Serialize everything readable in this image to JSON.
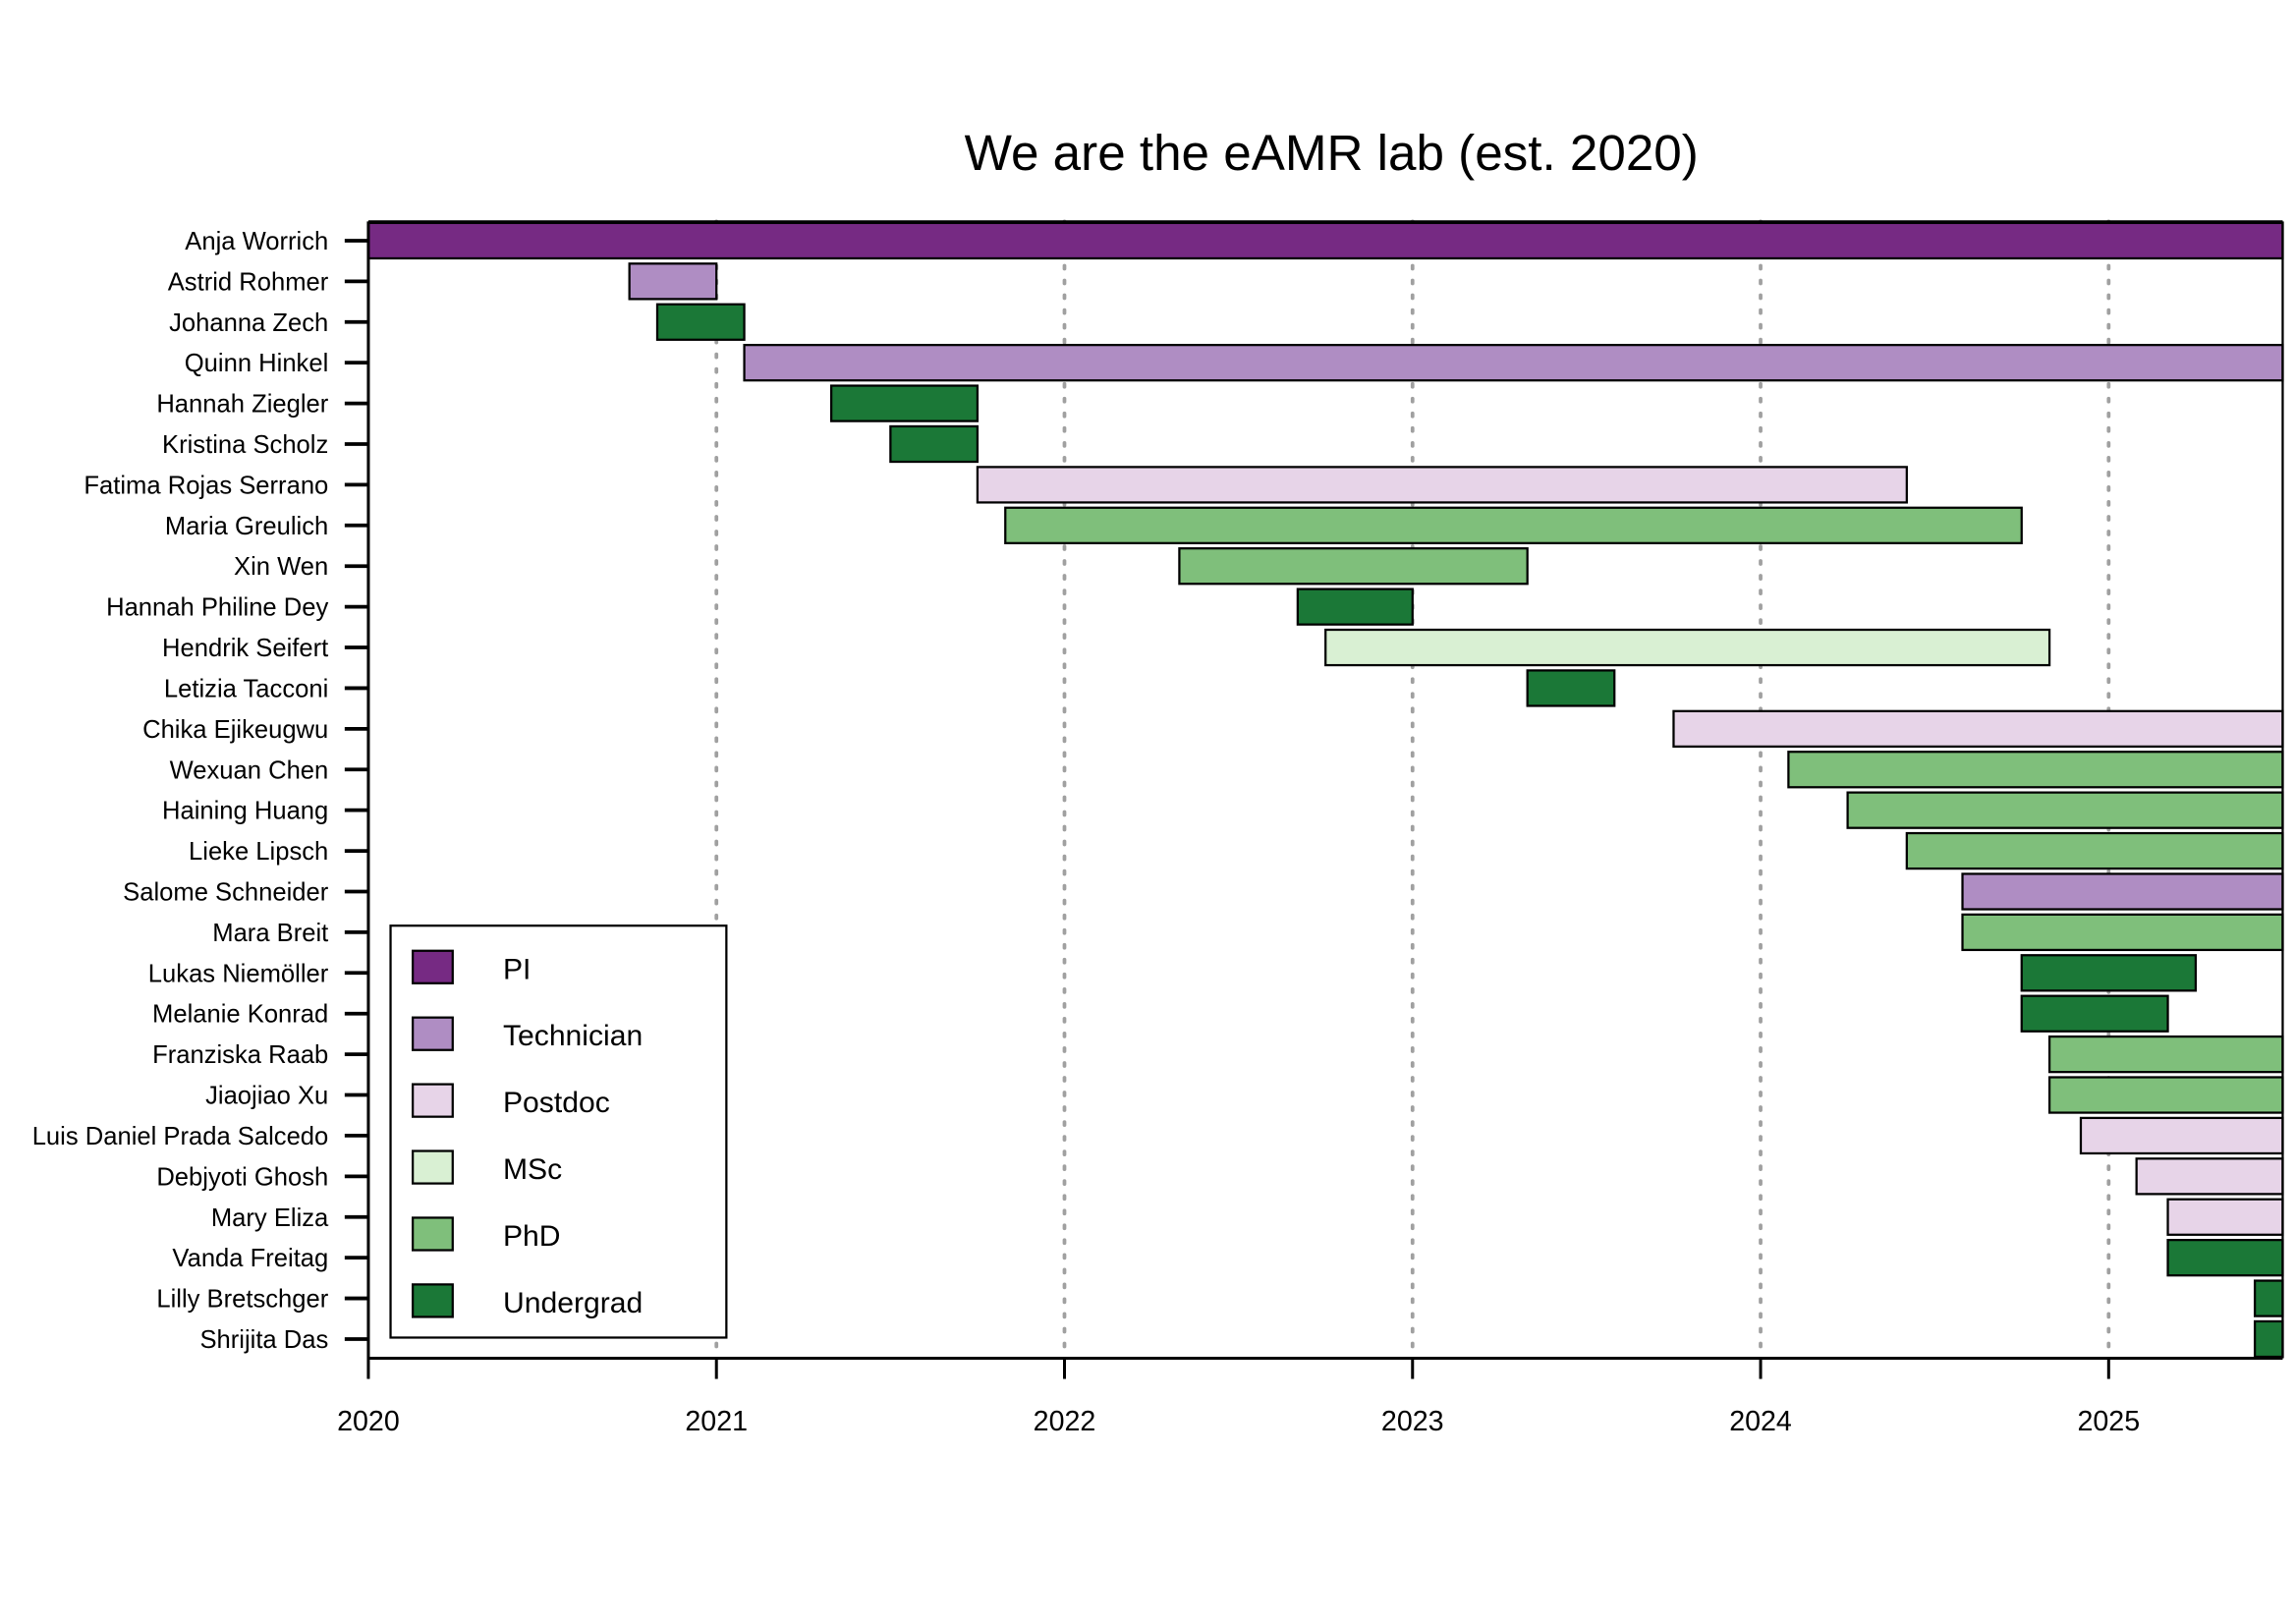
{
  "chart_data": {
    "type": "bar",
    "subtype": "gantt",
    "title": "We are the eAMR lab (est. 2020)",
    "xlabel": "",
    "ylabel": "",
    "xlim": [
      2020,
      2025.5
    ],
    "xticks": [
      "2020",
      "2021",
      "2022",
      "2023",
      "2024",
      "2025"
    ],
    "grid": "vertical dotted at years",
    "legend": {
      "placement": "bottom-left",
      "entries": [
        {
          "label": "PI",
          "color": "#762a83"
        },
        {
          "label": "Technician",
          "color": "#af8dc3"
        },
        {
          "label": "Postdoc",
          "color": "#e7d4e8"
        },
        {
          "label": "MSc",
          "color": "#d9f0d3"
        },
        {
          "label": "PhD",
          "color": "#7fbf7b"
        },
        {
          "label": "Undergrad",
          "color": "#1b7837"
        }
      ]
    },
    "rows": [
      {
        "name": "Anja Worrich",
        "role": "PI",
        "start": 2020.0,
        "end": 2025.5
      },
      {
        "name": "Astrid Rohmer",
        "role": "Technician",
        "start": 2020.75,
        "end": 2021.0
      },
      {
        "name": "Johanna Zech",
        "role": "Undergrad",
        "start": 2020.83,
        "end": 2021.08
      },
      {
        "name": "Quinn Hinkel",
        "role": "Technician",
        "start": 2021.08,
        "end": 2025.5
      },
      {
        "name": "Hannah Ziegler",
        "role": "Undergrad",
        "start": 2021.33,
        "end": 2021.75
      },
      {
        "name": "Kristina Scholz",
        "role": "Undergrad",
        "start": 2021.5,
        "end": 2021.75
      },
      {
        "name": "Fatima Rojas Serrano",
        "role": "Postdoc",
        "start": 2021.75,
        "end": 2024.42
      },
      {
        "name": "Maria Greulich",
        "role": "PhD",
        "start": 2021.83,
        "end": 2024.75
      },
      {
        "name": "Xin Wen",
        "role": "PhD",
        "start": 2022.33,
        "end": 2023.33
      },
      {
        "name": "Hannah Philine Dey",
        "role": "Undergrad",
        "start": 2022.67,
        "end": 2023.0
      },
      {
        "name": "Hendrik Seifert",
        "role": "MSc",
        "start": 2022.75,
        "end": 2024.83
      },
      {
        "name": "Letizia Tacconi",
        "role": "Undergrad",
        "start": 2023.33,
        "end": 2023.58
      },
      {
        "name": "Chika Ejikeugwu",
        "role": "Postdoc",
        "start": 2023.75,
        "end": 2025.5
      },
      {
        "name": "Wexuan Chen",
        "role": "PhD",
        "start": 2024.08,
        "end": 2025.5
      },
      {
        "name": "Haining Huang",
        "role": "PhD",
        "start": 2024.25,
        "end": 2025.5
      },
      {
        "name": "Lieke Lipsch",
        "role": "PhD",
        "start": 2024.42,
        "end": 2025.5
      },
      {
        "name": "Salome Schneider",
        "role": "Technician",
        "start": 2024.58,
        "end": 2025.5
      },
      {
        "name": "Mara Breit",
        "role": "PhD",
        "start": 2024.58,
        "end": 2025.5
      },
      {
        "name": "Lukas Niemöller",
        "role": "Undergrad",
        "start": 2024.75,
        "end": 2025.25
      },
      {
        "name": "Melanie Konrad",
        "role": "Undergrad",
        "start": 2024.75,
        "end": 2025.17
      },
      {
        "name": "Franziska Raab",
        "role": "PhD",
        "start": 2024.83,
        "end": 2025.5
      },
      {
        "name": "Jiaojiao Xu",
        "role": "PhD",
        "start": 2024.83,
        "end": 2025.5
      },
      {
        "name": "Luis Daniel Prada Salcedo",
        "role": "Postdoc",
        "start": 2024.92,
        "end": 2025.5
      },
      {
        "name": "Debjyoti Ghosh",
        "role": "Postdoc",
        "start": 2025.08,
        "end": 2025.5
      },
      {
        "name": "Mary Eliza",
        "role": "Postdoc",
        "start": 2025.17,
        "end": 2025.5
      },
      {
        "name": "Vanda Freitag",
        "role": "Undergrad",
        "start": 2025.17,
        "end": 2025.5
      },
      {
        "name": "Lilly Bretschger",
        "role": "Undergrad",
        "start": 2025.42,
        "end": 2025.5
      },
      {
        "name": "Shrijita Das",
        "role": "Undergrad",
        "start": 2025.42,
        "end": 2025.5
      }
    ]
  }
}
